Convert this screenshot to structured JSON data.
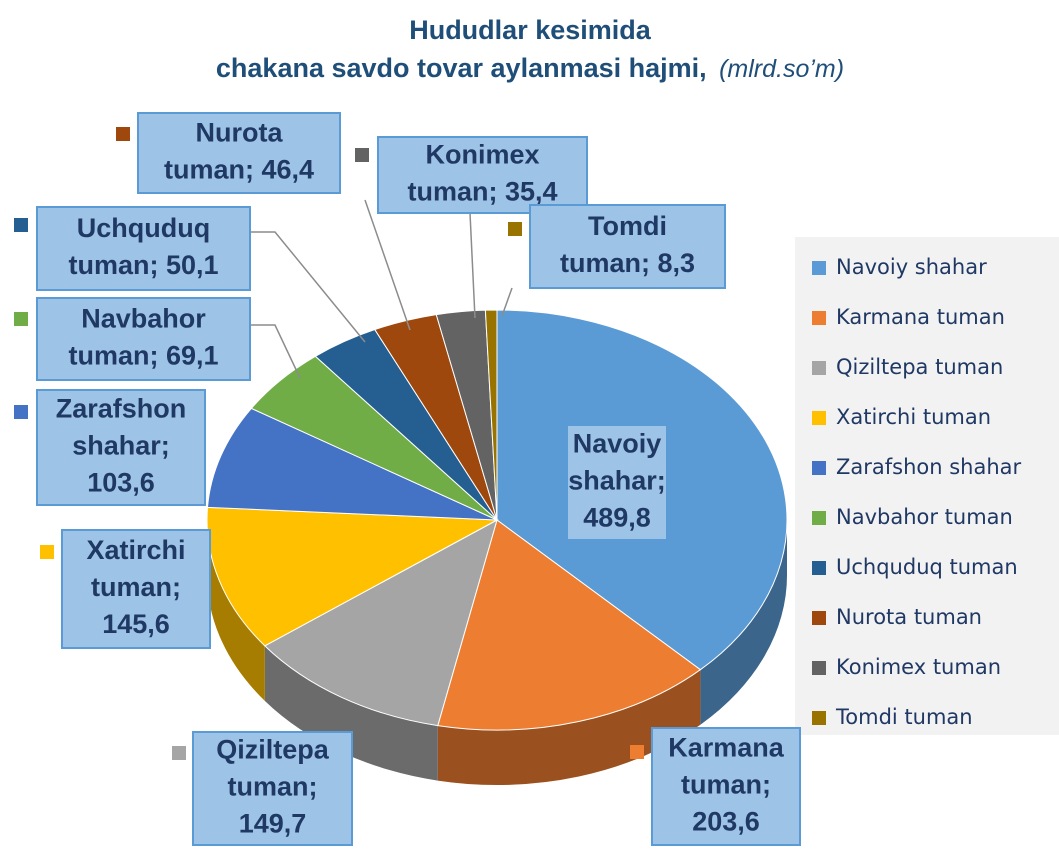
{
  "chart_data": {
    "type": "pie",
    "title": "Hududlar kesimida",
    "subtitle": "chakana savdo tovar aylanmasi hajmi,",
    "unit": "(mlrd.so’m)",
    "categories": [
      "Navoiy shahar",
      "Karmana tuman",
      "Qiziltepa tuman",
      "Xatirchi tuman",
      "Zarafshon shahar",
      "Navbahor tuman",
      "Uchquduq tuman",
      "Nurota tuman",
      "Konimex tuman",
      "Tomdi tuman"
    ],
    "values": [
      489.8,
      203.6,
      149.7,
      145.6,
      103.6,
      69.1,
      50.1,
      46.4,
      35.4,
      8.3
    ],
    "value_labels": [
      "Navoiy shahar; 489,8",
      "Karmana tuman; 203,6",
      "Qiziltepa tuman; 149,7",
      "Xatirchi tuman; 145,6",
      "Zarafshon shahar; 103,6",
      "Navbahor tuman; 69,1",
      "Uchquduq tuman; 50,1",
      "Nurota tuman; 46,4",
      "Konimex tuman; 35,4",
      "Tomdi tuman; 8,3"
    ],
    "colors": [
      "#5b9bd5",
      "#ed7d31",
      "#a5a5a5",
      "#ffc000",
      "#4472c4",
      "#70ad47",
      "#255e91",
      "#9e480e",
      "#636363",
      "#997300"
    ],
    "legend": "right"
  }
}
